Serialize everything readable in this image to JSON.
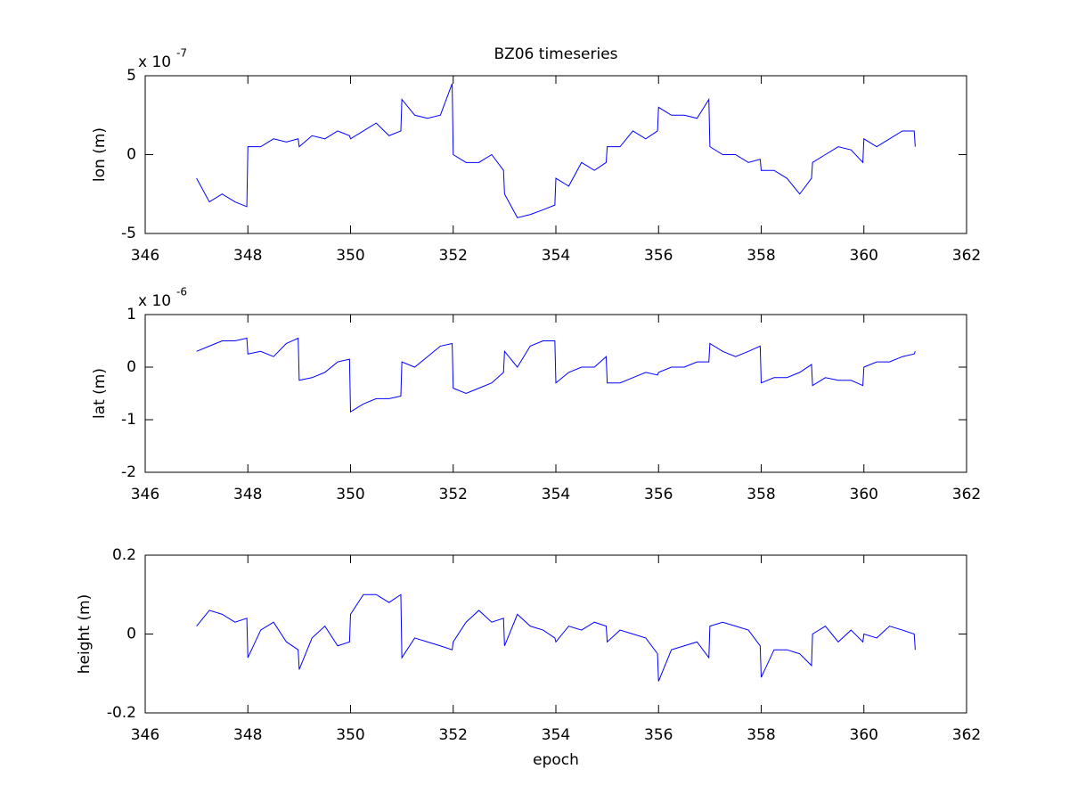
{
  "chart_data": [
    {
      "type": "line",
      "title": "BZ06 timeseries",
      "ylabel": "lon (m)",
      "axis_multiplier": {
        "base": "x 10",
        "exponent": "-7"
      },
      "xlim": [
        346,
        362
      ],
      "xticks": [
        346,
        348,
        350,
        352,
        354,
        356,
        358,
        360,
        362
      ],
      "ylim": [
        -5,
        5
      ],
      "yticks": [
        -5,
        0,
        5
      ],
      "x": [
        347,
        347.25,
        347.5,
        347.75,
        347.98,
        348,
        348.25,
        348.5,
        348.75,
        348.98,
        349,
        349.25,
        349.5,
        349.75,
        349.98,
        350,
        350.25,
        350.5,
        350.75,
        350.98,
        351,
        351.25,
        351.5,
        351.75,
        351.98,
        352,
        352.25,
        352.5,
        352.75,
        352.98,
        353,
        353.25,
        353.5,
        353.75,
        353.98,
        354,
        354.25,
        354.5,
        354.75,
        354.98,
        355,
        355.25,
        355.5,
        355.75,
        355.98,
        356,
        356.25,
        356.5,
        356.75,
        356.98,
        357,
        357.25,
        357.5,
        357.75,
        357.98,
        358,
        358.25,
        358.5,
        358.75,
        358.98,
        359,
        359.25,
        359.5,
        359.75,
        359.98,
        360,
        360.25,
        360.5,
        360.75,
        360.98,
        361
      ],
      "series": [
        {
          "name": "lon",
          "color": "#0000ff",
          "values": [
            -1.5,
            -3,
            -2.5,
            -3,
            -3.3,
            0.5,
            0.5,
            1,
            0.8,
            1,
            0.5,
            1.2,
            1,
            1.5,
            1.2,
            1,
            1.5,
            2,
            1.2,
            1.5,
            3.5,
            2.5,
            2.3,
            2.5,
            4.5,
            0,
            -0.5,
            -0.5,
            0,
            -1,
            -2.5,
            -4,
            -3.8,
            -3.5,
            -3.2,
            -1.5,
            -2,
            -0.5,
            -1,
            -0.5,
            0.5,
            0.5,
            1.5,
            1,
            1.5,
            3,
            2.5,
            2.5,
            2.3,
            3.5,
            0.5,
            0,
            0,
            -0.5,
            -0.3,
            -1,
            -1,
            -1.5,
            -2.5,
            -1.5,
            -0.5,
            0,
            0.5,
            0.3,
            -0.5,
            1,
            0.5,
            1,
            1.5,
            1.5,
            0.5
          ]
        }
      ]
    },
    {
      "type": "line",
      "ylabel": "lat (m)",
      "axis_multiplier": {
        "base": "x 10",
        "exponent": "-6"
      },
      "xlim": [
        346,
        362
      ],
      "xticks": [
        346,
        348,
        350,
        352,
        354,
        356,
        358,
        360,
        362
      ],
      "ylim": [
        -2,
        1
      ],
      "yticks": [
        -2,
        -1,
        0,
        1
      ],
      "x": [
        347,
        347.25,
        347.5,
        347.75,
        347.98,
        348,
        348.25,
        348.5,
        348.75,
        348.98,
        349,
        349.25,
        349.5,
        349.75,
        349.98,
        350,
        350.25,
        350.5,
        350.75,
        350.98,
        351,
        351.25,
        351.5,
        351.75,
        351.98,
        352,
        352.25,
        352.5,
        352.75,
        352.98,
        353,
        353.25,
        353.5,
        353.75,
        353.98,
        354,
        354.25,
        354.5,
        354.75,
        354.98,
        355,
        355.25,
        355.5,
        355.75,
        355.98,
        356,
        356.25,
        356.5,
        356.75,
        356.98,
        357,
        357.25,
        357.5,
        357.75,
        357.98,
        358,
        358.25,
        358.5,
        358.75,
        358.98,
        359,
        359.25,
        359.5,
        359.75,
        359.98,
        360,
        360.25,
        360.5,
        360.75,
        360.98,
        361
      ],
      "series": [
        {
          "name": "lat",
          "color": "#0000ff",
          "values": [
            0.3,
            0.4,
            0.5,
            0.5,
            0.55,
            0.25,
            0.3,
            0.2,
            0.45,
            0.55,
            -0.25,
            -0.2,
            -0.1,
            0.1,
            0.15,
            -0.85,
            -0.7,
            -0.6,
            -0.6,
            -0.55,
            0.1,
            0,
            0.2,
            0.4,
            0.45,
            -0.4,
            -0.5,
            -0.4,
            -0.3,
            -0.1,
            0.3,
            0,
            0.4,
            0.5,
            0.5,
            -0.3,
            -0.1,
            0,
            0,
            0.2,
            -0.3,
            -0.3,
            -0.2,
            -0.1,
            -0.15,
            -0.1,
            0,
            0,
            0.1,
            0.1,
            0.45,
            0.3,
            0.2,
            0.3,
            0.4,
            -0.3,
            -0.2,
            -0.2,
            -0.1,
            0.05,
            -0.35,
            -0.2,
            -0.25,
            -0.25,
            -0.35,
            0,
            0.1,
            0.1,
            0.2,
            0.25,
            0.3
          ]
        }
      ]
    },
    {
      "type": "line",
      "ylabel": "height (m)",
      "xlabel": "epoch",
      "xlim": [
        346,
        362
      ],
      "xticks": [
        346,
        348,
        350,
        352,
        354,
        356,
        358,
        360,
        362
      ],
      "ylim": [
        -0.2,
        0.2
      ],
      "yticks": [
        -0.2,
        0,
        0.2
      ],
      "x": [
        347,
        347.25,
        347.5,
        347.75,
        347.98,
        348,
        348.25,
        348.5,
        348.75,
        348.98,
        349,
        349.25,
        349.5,
        349.75,
        349.98,
        350,
        350.25,
        350.5,
        350.75,
        350.98,
        351,
        351.25,
        351.5,
        351.75,
        351.98,
        352,
        352.25,
        352.5,
        352.75,
        352.98,
        353,
        353.25,
        353.5,
        353.75,
        353.98,
        354,
        354.25,
        354.5,
        354.75,
        354.98,
        355,
        355.25,
        355.5,
        355.75,
        355.98,
        356,
        356.25,
        356.5,
        356.75,
        356.98,
        357,
        357.25,
        357.5,
        357.75,
        357.98,
        358,
        358.25,
        358.5,
        358.75,
        358.98,
        359,
        359.25,
        359.5,
        359.75,
        359.98,
        360,
        360.25,
        360.5,
        360.75,
        360.98,
        361
      ],
      "series": [
        {
          "name": "height",
          "color": "#0000ff",
          "values": [
            0.02,
            0.06,
            0.05,
            0.03,
            0.04,
            -0.06,
            0.01,
            0.03,
            -0.02,
            -0.04,
            -0.09,
            -0.01,
            0.02,
            -0.03,
            -0.02,
            0.05,
            0.1,
            0.1,
            0.08,
            0.1,
            -0.06,
            -0.01,
            -0.02,
            -0.03,
            -0.04,
            -0.02,
            0.03,
            0.06,
            0.03,
            0.04,
            -0.03,
            0.05,
            0.02,
            0.01,
            -0.01,
            -0.02,
            0.02,
            0.01,
            0.03,
            0.02,
            -0.02,
            0.01,
            0,
            -0.01,
            -0.05,
            -0.12,
            -0.04,
            -0.03,
            -0.02,
            -0.06,
            0.02,
            0.03,
            0.02,
            0.01,
            -0.03,
            -0.11,
            -0.04,
            -0.04,
            -0.05,
            -0.08,
            0,
            0.02,
            -0.02,
            0.01,
            -0.02,
            0,
            -0.01,
            0.02,
            0.01,
            0,
            -0.04
          ]
        }
      ]
    }
  ]
}
